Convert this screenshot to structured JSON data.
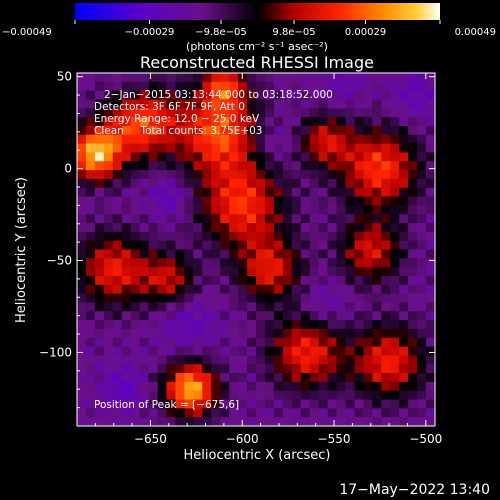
{
  "chart_data": {
    "type": "heatmap",
    "title": "Reconstructed RHESSI Image",
    "xlabel": "Heliocentric X (arcsec)",
    "ylabel": "Heliocentric Y (arcsec)",
    "xlim": [
      -690,
      -495
    ],
    "ylim": [
      -140,
      52
    ],
    "xticks": [
      -650,
      -600,
      -550,
      -500
    ],
    "xtick_labels": [
      "−650",
      "−600",
      "−550",
      "−500"
    ],
    "yticks": [
      50,
      0,
      -50,
      -100
    ],
    "ytick_labels": [
      "50",
      "0",
      "−50",
      "−100"
    ],
    "colorbar": {
      "range": [
        -0.00049,
        0.00049
      ],
      "ticks": [
        -0.00049,
        -0.00029,
        -9.8e-05,
        9.8e-05,
        0.00029,
        0.00049
      ],
      "tick_labels": [
        "−0.00049",
        "−0.00029",
        "−9.8e−05",
        "9.8e−05",
        "0.00029",
        "0.00049"
      ],
      "unit_text": "(photons cm⁻² s⁻¹ asec⁻²)",
      "colors": [
        "#0000ff",
        "#5a00c8",
        "#7a1890",
        "#000000",
        "#b40000",
        "#ff2000",
        "#ff8c00",
        "#ffd040",
        "#ffffff"
      ]
    },
    "annotations": [
      "2−Jan−2015 03:13:44.000 to 03:18:52.000",
      "Detectors: 3F 6F 7F 9F, Att 0",
      "Energy Range: 12.0 − 25.0 keV",
      "Clean     Total counts: 3.75E+03"
    ],
    "peak_label": "Position of Peak = [−675,6]",
    "hotspots": [
      {
        "x": -680,
        "y": 8,
        "sigma": 10,
        "value": 0.00049
      },
      {
        "x": -655,
        "y": 25,
        "sigma": 14,
        "value": 0.00032
      },
      {
        "x": -612,
        "y": 20,
        "sigma": 16,
        "value": 0.00034
      },
      {
        "x": -600,
        "y": -20,
        "sigma": 16,
        "value": 0.00028
      },
      {
        "x": -585,
        "y": -55,
        "sigma": 12,
        "value": 0.00022
      },
      {
        "x": -525,
        "y": 0,
        "sigma": 15,
        "value": 0.0003
      },
      {
        "x": -530,
        "y": -45,
        "sigma": 12,
        "value": 0.0002
      },
      {
        "x": -520,
        "y": -105,
        "sigma": 14,
        "value": 0.00025
      },
      {
        "x": -565,
        "y": -100,
        "sigma": 14,
        "value": 0.00026
      },
      {
        "x": -628,
        "y": -120,
        "sigma": 10,
        "value": 0.00048
      },
      {
        "x": -670,
        "y": -55,
        "sigma": 14,
        "value": 0.00024
      },
      {
        "x": -640,
        "y": -60,
        "sigma": 10,
        "value": 0.00016
      },
      {
        "x": -610,
        "y": 45,
        "sigma": 8,
        "value": 0.00022
      },
      {
        "x": -555,
        "y": 15,
        "sigma": 10,
        "value": 0.00018
      },
      {
        "x": -640,
        "y": -15,
        "sigma": 8,
        "value": -0.0003
      },
      {
        "x": -585,
        "y": 15,
        "sigma": 10,
        "value": -0.00028
      },
      {
        "x": -630,
        "y": -85,
        "sigma": 10,
        "value": -0.00028
      },
      {
        "x": -555,
        "y": -75,
        "sigma": 10,
        "value": -0.00026
      },
      {
        "x": -665,
        "y": -120,
        "sigma": 8,
        "value": -0.0003
      },
      {
        "x": -505,
        "y": 40,
        "sigma": 10,
        "value": -0.00026
      },
      {
        "x": -660,
        "y": 45,
        "sigma": 8,
        "value": -0.00024
      },
      {
        "x": -545,
        "y": 45,
        "sigma": 8,
        "value": -0.00024
      }
    ]
  },
  "footer": {
    "timestamp": "17−May−2022 13:40"
  }
}
